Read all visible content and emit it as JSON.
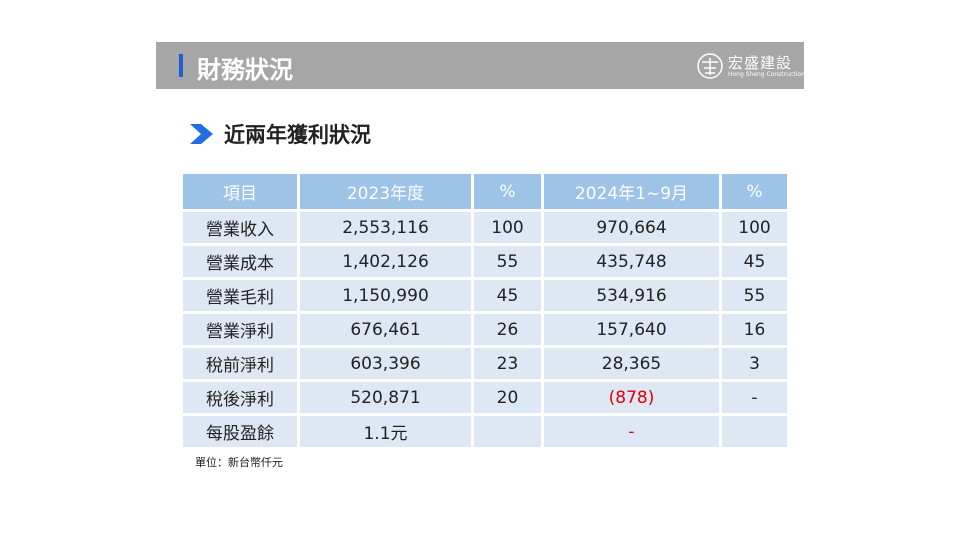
{
  "header": {
    "title": "財務狀況",
    "logo": {
      "name": "宏盛建設",
      "subtitle": "Hong Sheng Construction"
    }
  },
  "section": {
    "title": "近兩年獲利狀況"
  },
  "table": {
    "columns": [
      "項目",
      "2023年度",
      "%",
      "2024年1~9月",
      "%"
    ],
    "rows": [
      [
        "營業收入",
        "2,553,116",
        "100",
        "970,664",
        "100"
      ],
      [
        "營業成本",
        "1,402,126",
        "55",
        "435,748",
        "45"
      ],
      [
        "營業毛利",
        "1,150,990",
        "45",
        "534,916",
        "55"
      ],
      [
        "營業淨利",
        "676,461",
        "26",
        "157,640",
        "16"
      ],
      [
        "稅前淨利",
        "603,396",
        "23",
        "28,365",
        "3"
      ],
      [
        "稅後淨利",
        "520,871",
        "20",
        "(878)",
        "-"
      ],
      [
        "每股盈餘",
        "1.1元",
        "",
        "-",
        ""
      ]
    ]
  },
  "footnote": "單位：新台幣仟元"
}
